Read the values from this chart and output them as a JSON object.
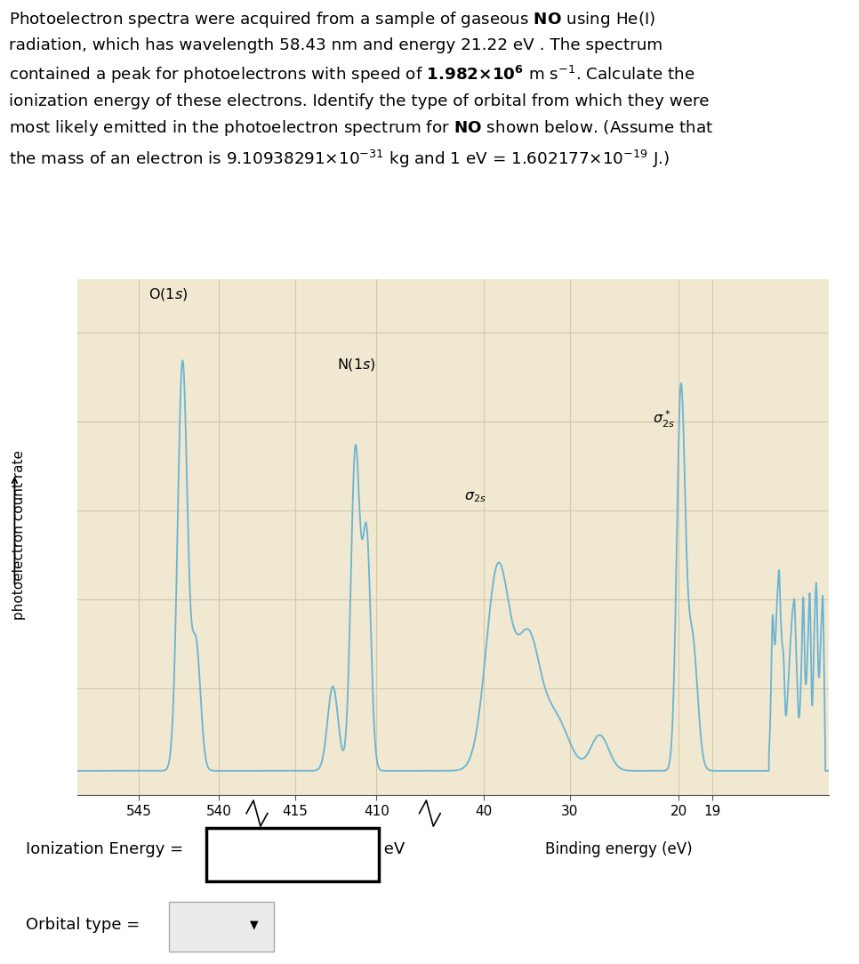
{
  "background_color": "#ffffff",
  "plot_bg_color": "#f0e8d0",
  "grid_color": "#d4c8a8",
  "line_color": "#6ab4d4",
  "ylabel": "photoelectron count rate",
  "xlabel": "Binding energy (eV)",
  "tick_labels": [
    "545",
    "540",
    "415",
    "410",
    "40",
    "30",
    "20",
    "19"
  ],
  "ionization_label": "Ionization Energy =",
  "ionization_unit": "eV",
  "orbital_label": "Orbital type ="
}
